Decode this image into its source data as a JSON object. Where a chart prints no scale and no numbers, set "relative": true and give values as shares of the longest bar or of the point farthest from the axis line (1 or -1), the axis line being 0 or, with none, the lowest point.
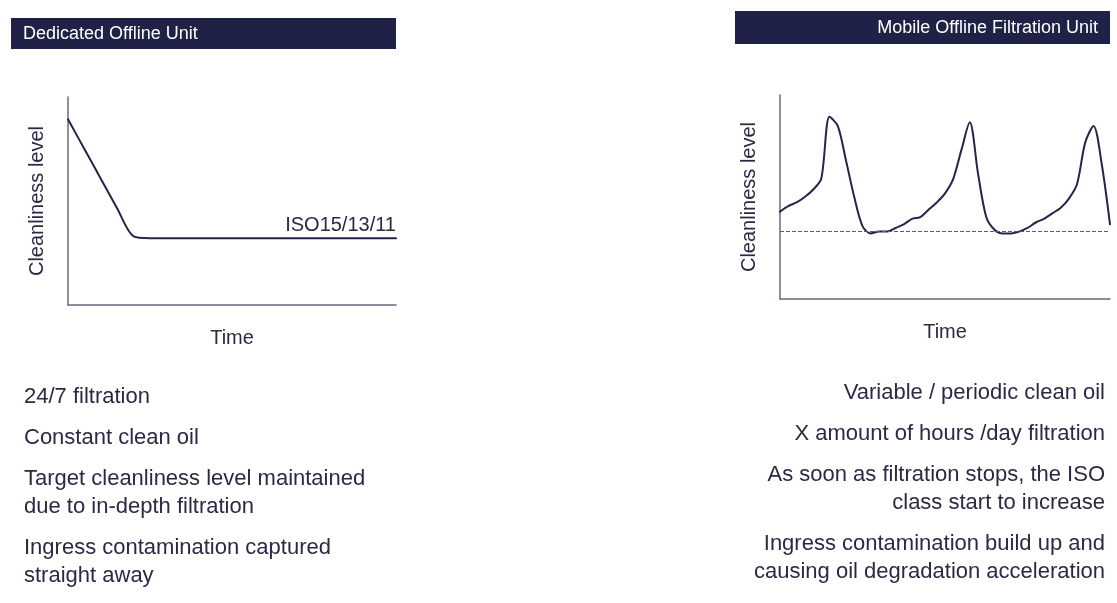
{
  "chart_data": [
    {
      "type": "line",
      "title": "Dedicated Offline Unit",
      "xlabel": "Time",
      "ylabel": "Cleanliness level",
      "relative": true,
      "marker": "none",
      "line_style": "solid",
      "categories": [
        null,
        null,
        null,
        null,
        null,
        null,
        null,
        null,
        null,
        null,
        null,
        null,
        null,
        null,
        null,
        null,
        null,
        null,
        null,
        null,
        null
      ],
      "series": [
        {
          "color": "#25254a",
          "values": [
            1,
            0.84,
            0.68,
            0.52,
            0.37,
            0.36,
            0.36,
            0.36,
            0.36,
            0.36,
            0.36,
            0.36,
            0.36,
            0.36,
            0.36,
            0.36,
            0.36,
            0.36,
            0.36,
            0.36,
            0.36
          ]
        }
      ],
      "annotations": [
        {
          "text": "ISO15/13/11",
          "y": 0.36
        },
        "24/7 filtration",
        "Constant clean oil",
        "Target cleanliness level maintained due to in-depth filtration",
        "Ingress contamination captured straight away"
      ]
    },
    {
      "type": "line",
      "title": "Mobile Offline Filtration Unit",
      "xlabel": "Time",
      "ylabel": "Cleanliness level",
      "relative": true,
      "marker": "none",
      "line_style": "solid",
      "categories": [
        null,
        null,
        null,
        null,
        null,
        null,
        null,
        null,
        null,
        null,
        null,
        null,
        null,
        null,
        null,
        null,
        null,
        null,
        null,
        null,
        null,
        null,
        null,
        null,
        null,
        null,
        null,
        null,
        null,
        null,
        null,
        null,
        null,
        null,
        null,
        null,
        null,
        null,
        null,
        null,
        null
      ],
      "series": [
        {
          "color": "#25254a",
          "values": [
            0.48,
            0.51,
            0.53,
            0.56,
            0.6,
            0.66,
            1,
            0.95,
            0.76,
            0.56,
            0.4,
            0.36,
            0.37,
            0.37,
            0.39,
            0.41,
            0.44,
            0.45,
            0.49,
            0.53,
            0.58,
            0.66,
            0.82,
            0.97,
            0.69,
            0.45,
            0.38,
            0.36,
            0.36,
            0.37,
            0.39,
            0.42,
            0.44,
            0.47,
            0.5,
            0.55,
            0.63,
            0.86,
            0.95,
            0.74,
            0.41
          ]
        }
      ],
      "ref_lines": [
        {
          "axis": "y",
          "value": 0.37,
          "color": "#5a5a7a",
          "line_style": "dashed"
        }
      ],
      "annotations": [
        "Variable / periodic clean oil",
        "X amount of hours /day filtration",
        "As soon as filtration stops, the ISO class start to increase",
        "Ingress contamination build up and causing oil degradation acceleration"
      ]
    }
  ]
}
